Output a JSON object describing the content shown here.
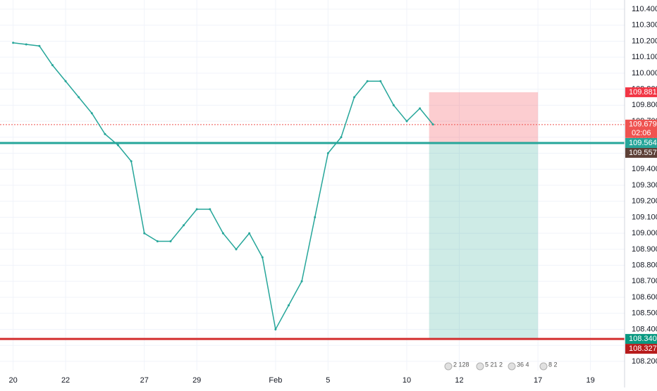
{
  "chart_data": {
    "type": "line",
    "x": [
      0,
      0.5,
      1,
      1.5,
      2,
      2.5,
      3,
      3.5,
      4,
      4.5,
      5,
      5.5,
      6,
      6.5,
      7,
      7.5,
      8,
      8.5,
      9,
      9.5,
      10,
      10.5,
      11,
      11.5,
      12,
      12.5,
      13,
      13.5,
      14,
      14.5,
      15,
      15.5,
      16
    ],
    "series": [
      {
        "color": "#26a69a",
        "values": [
          110.19,
          110.18,
          110.17,
          110.05,
          109.95,
          109.85,
          109.75,
          109.62,
          109.55,
          109.45,
          109.0,
          108.95,
          108.95,
          109.05,
          109.15,
          109.15,
          109.0,
          108.9,
          109.0,
          108.85,
          108.4,
          108.55,
          108.7,
          109.1,
          109.5,
          109.6,
          109.85,
          109.95,
          109.95,
          109.8,
          109.7,
          109.78,
          109.68
        ]
      }
    ],
    "xlim": [
      -0.5,
      23.3
    ],
    "ylim": [
      108.1424,
      110.4572
    ],
    "xticks": [
      {
        "value": 0,
        "label": "20"
      },
      {
        "value": 2,
        "label": "22"
      },
      {
        "value": 5,
        "label": "27"
      },
      {
        "value": 7,
        "label": "29"
      },
      {
        "value": 10,
        "label": "Feb"
      },
      {
        "value": 12,
        "label": "5"
      },
      {
        "value": 15,
        "label": "10"
      },
      {
        "value": 17,
        "label": "12"
      },
      {
        "value": 20,
        "label": "17"
      },
      {
        "value": 22,
        "label": "19"
      }
    ],
    "yticks": [
      {
        "value": 110.4,
        "label": "110.400"
      },
      {
        "value": 110.3,
        "label": "110.300"
      },
      {
        "value": 110.2,
        "label": "110.200"
      },
      {
        "value": 110.1,
        "label": "110.100"
      },
      {
        "value": 110.0,
        "label": "110.000"
      },
      {
        "value": 109.9,
        "label": "109.900"
      },
      {
        "value": 109.8,
        "label": "109.800"
      },
      {
        "value": 109.7,
        "label": "109.700"
      },
      {
        "value": 109.6,
        "label": "109.600"
      },
      {
        "value": 109.5,
        "label": "109.500"
      },
      {
        "value": 109.4,
        "label": "109.400"
      },
      {
        "value": 109.3,
        "label": "109.300"
      },
      {
        "value": 109.2,
        "label": "109.200"
      },
      {
        "value": 109.1,
        "label": "109.100"
      },
      {
        "value": 109.0,
        "label": "109.000"
      },
      {
        "value": 108.9,
        "label": "108.900"
      },
      {
        "value": 108.8,
        "label": "108.800"
      },
      {
        "value": 108.7,
        "label": "108.700"
      },
      {
        "value": 108.6,
        "label": "108.600"
      },
      {
        "value": 108.5,
        "label": "108.500"
      },
      {
        "value": 108.4,
        "label": "108.400"
      },
      {
        "value": 108.3,
        "label": "108.300"
      },
      {
        "value": 108.2,
        "label": "108.200"
      }
    ],
    "grid": true,
    "position": {
      "stop": 109.881,
      "entry": 109.564,
      "target": 108.34,
      "start": 15.85,
      "end": 20
    },
    "lines": [
      {
        "value": 109.564,
        "color": "#26a69a",
        "width": 3
      },
      {
        "value": 108.34,
        "color": "#d32f2f",
        "width": 3
      },
      {
        "value": 109.679,
        "color": "#ef5350",
        "width": 1,
        "dash": "2,2"
      }
    ],
    "levels": [
      {
        "value": 109.881,
        "label": "109.881",
        "color": "#f23645"
      },
      {
        "value": 109.679,
        "label": "109.679",
        "color": "#ef5350"
      },
      {
        "value": 109.564,
        "label": "109.564",
        "color": "#26a69a"
      },
      {
        "value": 109.557,
        "label": "109.557",
        "color": "#5d4037"
      },
      {
        "value": 108.34,
        "label": "108.340",
        "color": "#089981"
      },
      {
        "value": 108.327,
        "label": "108.327",
        "color": "#b71c1c"
      }
    ],
    "countdown": "02:06",
    "events": [
      "2 128",
      "5 21 2",
      "36 4",
      "8 2"
    ]
  }
}
